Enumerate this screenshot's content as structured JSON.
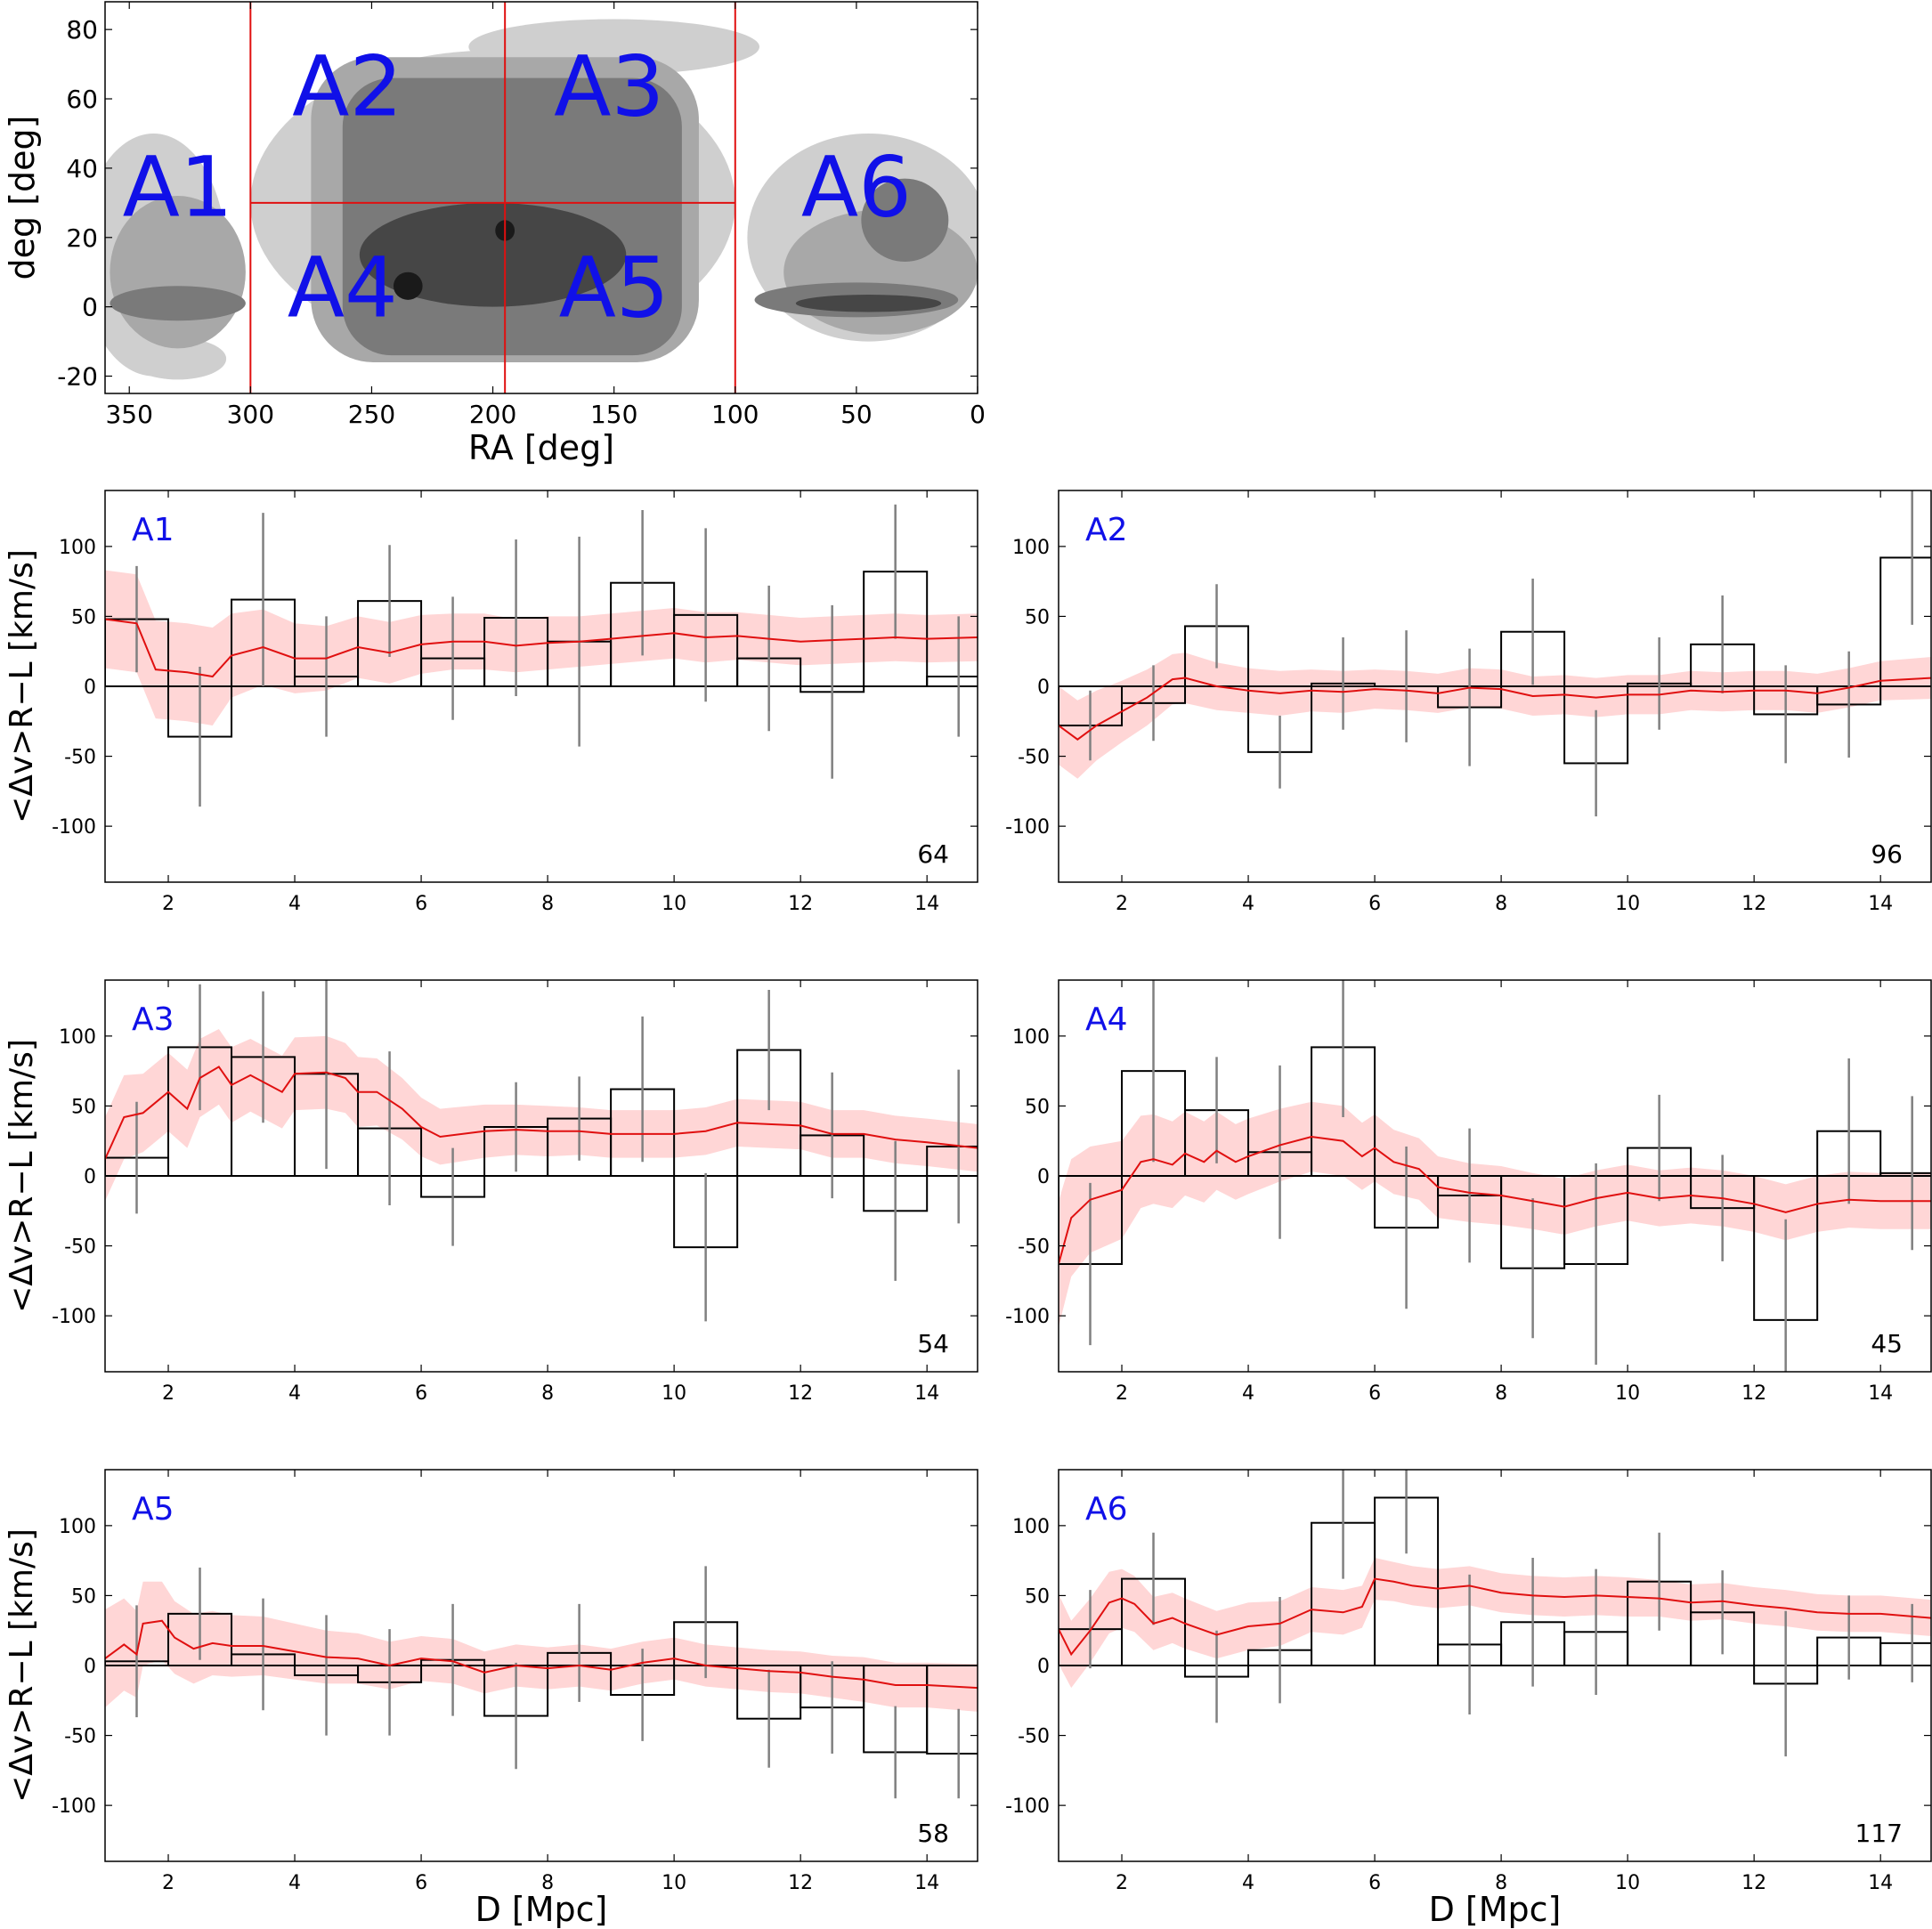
{
  "sky_map": {
    "xlabel": "RA [deg]",
    "ylabel": "deg [deg]",
    "xlim": [
      360,
      0
    ],
    "ylim": [
      -25,
      88
    ],
    "x_ticks": [
      350,
      300,
      250,
      200,
      150,
      100,
      50,
      0
    ],
    "y_ticks": [
      80,
      60,
      40,
      20,
      0,
      -20
    ],
    "divider_color": "#e01010",
    "label_color": "#1010e8",
    "region_dividers": [
      {
        "type": "vline",
        "ra": 300,
        "dec_from": -25,
        "dec_to": 88
      },
      {
        "type": "vline",
        "ra": 195,
        "dec_from": -25,
        "dec_to": 88
      },
      {
        "type": "vline",
        "ra": 100,
        "dec_from": -25,
        "dec_to": 88
      },
      {
        "type": "hline",
        "dec": 30,
        "ra_from": 300,
        "ra_to": 100
      }
    ],
    "region_labels": [
      {
        "text": "A1",
        "ra": 330,
        "dec": 35
      },
      {
        "text": "A2",
        "ra": 260,
        "dec": 64
      },
      {
        "text": "A3",
        "ra": 152,
        "dec": 64
      },
      {
        "text": "A4",
        "ra": 262,
        "dec": 6
      },
      {
        "text": "A5",
        "ra": 150,
        "dec": 6
      },
      {
        "text": "A6",
        "ra": 50,
        "dec": 35
      }
    ],
    "density_blobs": [
      {
        "level": 1,
        "shape": "ellipse",
        "ra": 200,
        "dec": 30,
        "rx": 100,
        "ry": 44
      },
      {
        "level": 1,
        "shape": "ellipse",
        "ra": 340,
        "dec": 15,
        "rx": 30,
        "ry": 35
      },
      {
        "level": 1,
        "shape": "ellipse",
        "ra": 45,
        "dec": 20,
        "rx": 50,
        "ry": 30
      },
      {
        "level": 1,
        "shape": "ellipse",
        "ra": 150,
        "dec": 75,
        "rx": 60,
        "ry": 8
      },
      {
        "level": 1,
        "shape": "ellipse",
        "ra": 330,
        "dec": -15,
        "rx": 20,
        "ry": 6
      },
      {
        "level": 2,
        "shape": "ellipse",
        "ra": 330,
        "dec": 10,
        "rx": 28,
        "ry": 22
      },
      {
        "level": 2,
        "shape": "ellipse",
        "ra": 40,
        "dec": 10,
        "rx": 40,
        "ry": 18
      },
      {
        "level": 3,
        "shape": "ellipse",
        "ra": 330,
        "dec": 1,
        "rx": 28,
        "ry": 5
      },
      {
        "level": 3,
        "shape": "ellipse",
        "ra": 50,
        "dec": 2,
        "rx": 42,
        "ry": 5
      },
      {
        "level": 3,
        "shape": "ellipse",
        "ra": 30,
        "dec": 25,
        "rx": 18,
        "ry": 12
      },
      {
        "level": 4,
        "shape": "ellipse",
        "ra": 45,
        "dec": 1,
        "rx": 30,
        "ry": 2.5
      },
      {
        "level": 2,
        "shape": "rect",
        "ra": 195,
        "dec": 28,
        "rx": 80,
        "ry": 44,
        "r": 70
      },
      {
        "level": 3,
        "shape": "rect",
        "ra": 192,
        "dec": 26,
        "rx": 70,
        "ry": 40,
        "r": 55
      },
      {
        "level": 4,
        "shape": "ellipse",
        "ra": 200,
        "dec": 15,
        "rx": 55,
        "ry": 15
      },
      {
        "level": 5,
        "shape": "ellipse",
        "ra": 235,
        "dec": 6,
        "rx": 6,
        "ry": 4
      },
      {
        "level": 5,
        "shape": "ellipse",
        "ra": 195,
        "dec": 22,
        "rx": 4,
        "ry": 3
      }
    ]
  },
  "velocity_panels": {
    "ylabel": "<Δv>R−L [km/s]",
    "xlabel": "D [Mpc]",
    "xlim": [
      1,
      14.8
    ],
    "ylim": [
      -140,
      140
    ],
    "x_ticks": [
      2,
      4,
      6,
      8,
      10,
      12,
      14
    ],
    "y_ticks": [
      100,
      50,
      0,
      -50,
      -100
    ],
    "band_color": "#ffd6d6",
    "line_color": "#e01010",
    "bar_color": "#000000",
    "errorbar_color": "#808080",
    "label_color": "#1010e8"
  },
  "chart_data": [
    {
      "type": "bar",
      "name": "A1",
      "count": "64",
      "bin_edges": [
        1,
        2,
        3,
        4,
        5,
        6,
        7,
        8,
        9,
        10,
        11,
        12,
        13,
        14,
        15
      ],
      "values": [
        48,
        -36,
        62,
        7,
        61,
        20,
        49,
        32,
        74,
        51,
        20,
        -4,
        82,
        7
      ],
      "errors": [
        38,
        50,
        62,
        43,
        40,
        44,
        56,
        75,
        52,
        62,
        52,
        62,
        48,
        43
      ],
      "running_mean": {
        "x": [
          1.0,
          1.5,
          1.8,
          2.3,
          2.7,
          3.0,
          3.5,
          4.0,
          4.5,
          5.0,
          5.5,
          6.0,
          6.5,
          7.0,
          7.5,
          8.0,
          8.5,
          9.0,
          9.5,
          10.0,
          10.5,
          11.0,
          11.5,
          12.0,
          12.5,
          13.0,
          13.5,
          14.0,
          14.8
        ],
        "y": [
          48,
          45,
          12,
          10,
          7,
          22,
          28,
          20,
          20,
          28,
          24,
          30,
          32,
          32,
          29,
          31,
          32,
          34,
          36,
          38,
          35,
          36,
          34,
          32,
          33,
          34,
          35,
          34,
          35
        ],
        "band": [
          35,
          35,
          35,
          35,
          35,
          30,
          27,
          25,
          23,
          22,
          22,
          21,
          20,
          20,
          19,
          19,
          18,
          18,
          18,
          18,
          18,
          17,
          17,
          17,
          17,
          17,
          17,
          17,
          17
        ]
      }
    },
    {
      "type": "bar",
      "name": "A2",
      "count": "96",
      "bin_edges": [
        1,
        2,
        3,
        4,
        5,
        6,
        7,
        8,
        9,
        10,
        11,
        12,
        13,
        14,
        15
      ],
      "values": [
        -28,
        -12,
        43,
        -47,
        2,
        0,
        -15,
        39,
        -55,
        2,
        30,
        -20,
        -13,
        92
      ],
      "errors": [
        25,
        27,
        30,
        26,
        33,
        40,
        42,
        38,
        38,
        33,
        35,
        35,
        38,
        48
      ],
      "running_mean": {
        "x": [
          1.0,
          1.3,
          1.6,
          2.0,
          2.4,
          2.8,
          3.0,
          3.5,
          4.0,
          4.5,
          5.0,
          5.5,
          6.0,
          6.5,
          7.0,
          7.5,
          8.0,
          8.5,
          9.0,
          9.5,
          10.0,
          10.5,
          11.0,
          11.5,
          12.0,
          12.5,
          13.0,
          13.5,
          14.0,
          14.8
        ],
        "y": [
          -28,
          -38,
          -28,
          -18,
          -8,
          5,
          6,
          0,
          -3,
          -5,
          -3,
          -4,
          -2,
          -3,
          -5,
          -1,
          -2,
          -7,
          -6,
          -8,
          -6,
          -6,
          -3,
          -4,
          -3,
          -3,
          -5,
          -1,
          4,
          6
        ],
        "band": [
          28,
          28,
          25,
          22,
          20,
          18,
          18,
          17,
          16,
          16,
          15,
          15,
          14,
          14,
          14,
          14,
          14,
          14,
          14,
          14,
          14,
          14,
          14,
          14,
          14,
          14,
          14,
          14,
          14,
          15
        ]
      }
    },
    {
      "type": "bar",
      "name": "A3",
      "count": "54",
      "bin_edges": [
        1,
        2,
        3,
        4,
        5,
        6,
        7,
        8,
        9,
        10,
        11,
        12,
        13,
        14,
        15
      ],
      "values": [
        13,
        92,
        85,
        73,
        34,
        -15,
        35,
        41,
        62,
        -51,
        90,
        29,
        -25,
        21
      ],
      "errors": [
        40,
        45,
        47,
        68,
        55,
        35,
        32,
        30,
        52,
        53,
        43,
        45,
        50,
        55
      ],
      "running_mean": {
        "x": [
          1.0,
          1.3,
          1.6,
          2.0,
          2.3,
          2.5,
          2.8,
          3.0,
          3.3,
          3.8,
          4.0,
          4.5,
          4.8,
          5.0,
          5.3,
          5.7,
          6.0,
          6.3,
          7.0,
          7.5,
          8.0,
          8.5,
          9.0,
          9.5,
          10.0,
          10.5,
          11.0,
          11.5,
          12.0,
          12.5,
          13.0,
          13.5,
          14.0,
          14.8
        ],
        "y": [
          12,
          42,
          45,
          60,
          48,
          70,
          78,
          65,
          72,
          60,
          73,
          74,
          70,
          60,
          60,
          48,
          35,
          28,
          32,
          33,
          32,
          32,
          30,
          30,
          30,
          32,
          38,
          37,
          36,
          30,
          30,
          26,
          24,
          20
        ],
        "band": [
          30,
          30,
          28,
          28,
          28,
          28,
          27,
          27,
          26,
          26,
          26,
          26,
          25,
          25,
          24,
          22,
          21,
          20,
          19,
          18,
          18,
          17,
          17,
          17,
          17,
          17,
          17,
          17,
          17,
          17,
          17,
          17,
          17,
          17
        ]
      }
    },
    {
      "type": "bar",
      "name": "A4",
      "count": "45",
      "bin_edges": [
        1,
        2,
        3,
        4,
        5,
        6,
        7,
        8,
        9,
        10,
        11,
        12,
        13,
        14,
        15
      ],
      "values": [
        -63,
        75,
        47,
        17,
        92,
        -37,
        -14,
        -66,
        -63,
        20,
        -23,
        -103,
        32,
        2
      ],
      "errors": [
        58,
        65,
        38,
        62,
        50,
        58,
        48,
        50,
        72,
        38,
        38,
        72,
        52,
        55
      ],
      "running_mean": {
        "x": [
          1.0,
          1.2,
          1.5,
          2.0,
          2.3,
          2.5,
          2.8,
          3.0,
          3.3,
          3.5,
          3.8,
          4.0,
          4.5,
          5.0,
          5.5,
          5.8,
          6.0,
          6.3,
          6.7,
          7.0,
          7.5,
          8.0,
          8.5,
          9.0,
          9.5,
          10.0,
          10.5,
          11.0,
          11.5,
          12.0,
          12.5,
          13.0,
          13.5,
          14.0,
          14.8
        ],
        "y": [
          -63,
          -30,
          -17,
          -10,
          10,
          12,
          8,
          16,
          10,
          18,
          10,
          14,
          22,
          28,
          25,
          14,
          20,
          10,
          5,
          -8,
          -12,
          -14,
          -18,
          -22,
          -16,
          -12,
          -16,
          -14,
          -16,
          -20,
          -26,
          -20,
          -17,
          -18,
          -18
        ],
        "band": [
          45,
          42,
          38,
          35,
          33,
          32,
          31,
          30,
          29,
          28,
          27,
          27,
          26,
          25,
          25,
          24,
          24,
          23,
          22,
          22,
          21,
          21,
          20,
          20,
          20,
          20,
          20,
          20,
          20,
          20,
          20,
          20,
          20,
          20,
          20
        ]
      }
    },
    {
      "type": "bar",
      "name": "A5",
      "count": "58",
      "bin_edges": [
        1,
        2,
        3,
        4,
        5,
        6,
        7,
        8,
        9,
        10,
        11,
        12,
        13,
        14,
        15
      ],
      "values": [
        3,
        37,
        8,
        -7,
        -12,
        4,
        -36,
        9,
        -21,
        31,
        -38,
        -30,
        -62,
        -63
      ],
      "errors": [
        40,
        33,
        40,
        43,
        38,
        40,
        38,
        35,
        33,
        40,
        35,
        33,
        33,
        32
      ],
      "running_mean": {
        "x": [
          1.0,
          1.3,
          1.5,
          1.6,
          1.9,
          2.1,
          2.4,
          2.7,
          3.0,
          3.5,
          4.0,
          4.5,
          5.0,
          5.5,
          6.0,
          6.5,
          7.0,
          7.5,
          8.0,
          8.5,
          9.0,
          9.5,
          10.0,
          10.5,
          11.0,
          11.5,
          12.0,
          12.5,
          13.0,
          13.5,
          14.0,
          14.8
        ],
        "y": [
          5,
          15,
          8,
          30,
          32,
          20,
          12,
          16,
          14,
          14,
          10,
          6,
          5,
          0,
          5,
          3,
          -5,
          0,
          -2,
          0,
          -3,
          2,
          5,
          0,
          -2,
          -4,
          -5,
          -8,
          -10,
          -14,
          -14,
          -16
        ],
        "band": [
          35,
          33,
          31,
          30,
          28,
          26,
          25,
          23,
          22,
          21,
          20,
          19,
          18,
          17,
          16,
          16,
          15,
          15,
          15,
          15,
          15,
          15,
          15,
          15,
          15,
          15,
          15,
          15,
          16,
          16,
          16,
          17
        ]
      }
    },
    {
      "type": "bar",
      "name": "A6",
      "count": "117",
      "bin_edges": [
        1,
        2,
        3,
        4,
        5,
        6,
        7,
        8,
        9,
        10,
        11,
        12,
        13,
        14,
        15
      ],
      "values": [
        26,
        62,
        -8,
        11,
        102,
        120,
        15,
        31,
        24,
        60,
        38,
        -13,
        20,
        16
      ],
      "errors": [
        28,
        33,
        33,
        38,
        40,
        40,
        50,
        46,
        45,
        35,
        30,
        52,
        30,
        28
      ],
      "running_mean": {
        "x": [
          1.0,
          1.2,
          1.5,
          1.8,
          2.0,
          2.2,
          2.5,
          2.8,
          3.0,
          3.5,
          4.0,
          4.5,
          5.0,
          5.5,
          5.8,
          6.0,
          6.3,
          6.6,
          7.0,
          7.5,
          8.0,
          8.5,
          9.0,
          9.5,
          10.0,
          10.5,
          11.0,
          11.5,
          12.0,
          12.5,
          13.0,
          13.5,
          14.0,
          14.8
        ],
        "y": [
          26,
          8,
          25,
          45,
          48,
          44,
          30,
          34,
          30,
          22,
          28,
          30,
          40,
          38,
          42,
          62,
          60,
          57,
          55,
          57,
          52,
          50,
          49,
          50,
          49,
          48,
          45,
          46,
          43,
          41,
          38,
          37,
          37,
          34
        ],
        "band": [
          25,
          24,
          23,
          22,
          21,
          20,
          19,
          18,
          18,
          17,
          17,
          16,
          16,
          16,
          15,
          15,
          14,
          14,
          14,
          14,
          14,
          14,
          14,
          14,
          14,
          13,
          13,
          13,
          13,
          13,
          13,
          13,
          13,
          13
        ]
      }
    }
  ]
}
